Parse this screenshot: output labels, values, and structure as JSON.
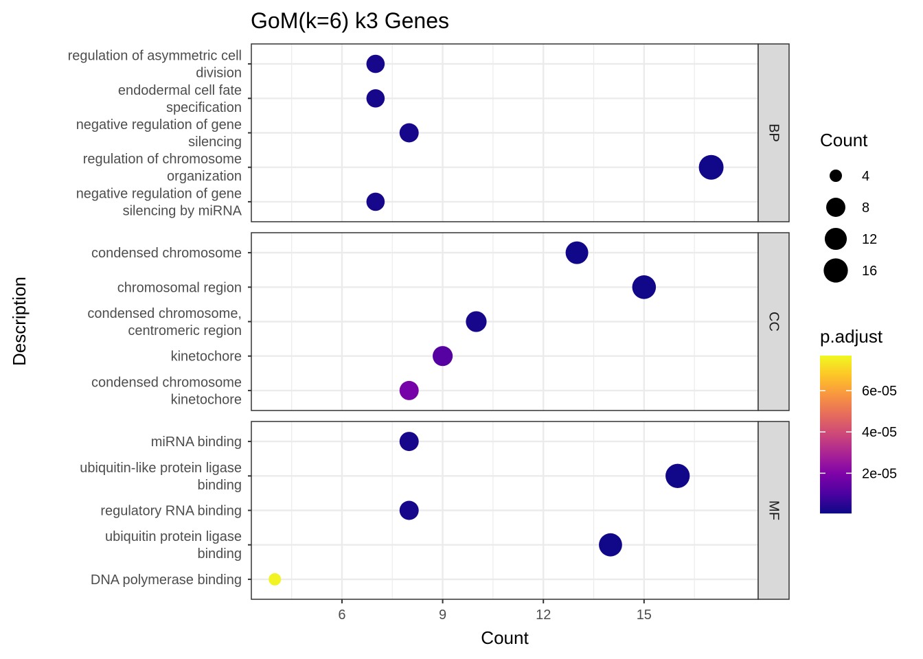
{
  "chart_data": {
    "type": "scatter",
    "title": "GoM(k=6) k3 Genes",
    "xlabel": "Count",
    "ylabel": "Description",
    "xlim": [
      3.3,
      18.4
    ],
    "x_ticks": [
      "6",
      "9",
      "12",
      "15"
    ],
    "grid": true,
    "legend_position": "right",
    "colors": {
      "low": "#0d0887",
      "high": "#f0f921"
    },
    "panels": [
      {
        "name": "BP",
        "terms": [
          {
            "description": [
              "regulation of asymmetric cell",
              "division"
            ],
            "count": 7,
            "p_adjust": 2e-06
          },
          {
            "description": [
              "endodermal cell fate",
              "specification"
            ],
            "count": 7,
            "p_adjust": 2e-06
          },
          {
            "description": [
              "negative regulation of gene",
              "silencing"
            ],
            "count": 8,
            "p_adjust": 2e-06
          },
          {
            "description": [
              "regulation of chromosome",
              "organization"
            ],
            "count": 17,
            "p_adjust": 1e-06
          },
          {
            "description": [
              "negative regulation of gene",
              "silencing by miRNA"
            ],
            "count": 7,
            "p_adjust": 2e-06
          }
        ]
      },
      {
        "name": "CC",
        "terms": [
          {
            "description": [
              "condensed chromosome"
            ],
            "count": 13,
            "p_adjust": 1e-06
          },
          {
            "description": [
              "chromosomal region"
            ],
            "count": 15,
            "p_adjust": 1e-06
          },
          {
            "description": [
              "condensed chromosome,",
              "centromeric region"
            ],
            "count": 10,
            "p_adjust": 2e-06
          },
          {
            "description": [
              "kinetochore"
            ],
            "count": 9,
            "p_adjust": 1.2e-05
          },
          {
            "description": [
              "condensed chromosome",
              "kinetochore"
            ],
            "count": 8,
            "p_adjust": 1.8e-05
          }
        ]
      },
      {
        "name": "MF",
        "terms": [
          {
            "description": [
              "miRNA binding"
            ],
            "count": 8,
            "p_adjust": 2e-06
          },
          {
            "description": [
              "ubiquitin-like protein ligase",
              "binding"
            ],
            "count": 16,
            "p_adjust": 1e-06
          },
          {
            "description": [
              "regulatory RNA binding"
            ],
            "count": 8,
            "p_adjust": 2e-06
          },
          {
            "description": [
              "ubiquitin protein ligase",
              "binding"
            ],
            "count": 14,
            "p_adjust": 1e-06
          },
          {
            "description": [
              "DNA polymerase binding"
            ],
            "count": 4,
            "p_adjust": 7.6e-05
          }
        ]
      }
    ],
    "legend_count": {
      "title": "Count",
      "labels": [
        "4",
        "8",
        "12",
        "16"
      ],
      "values": [
        4,
        8,
        12,
        16
      ]
    },
    "legend_color": {
      "title": "p.adjust",
      "range": [
        5e-07,
        7.7e-05
      ],
      "tick_labels": [
        "2e-05",
        "4e-05",
        "6e-05"
      ],
      "tick_values": [
        2e-05,
        4e-05,
        6e-05
      ]
    }
  }
}
